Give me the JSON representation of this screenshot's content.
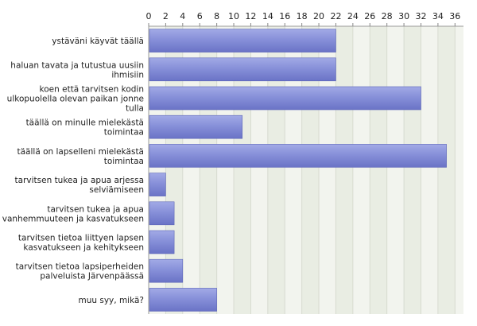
{
  "chart_data": {
    "type": "bar",
    "orientation": "horizontal",
    "categories": [
      "ystäväni käyvät täällä",
      "haluan tavata ja tutustua uusiin ihmisiin",
      "koen että tarvitsen kodin ulkopuolella olevan paikan jonne tulla",
      "täällä on minulle mielekästä toimintaa",
      "täällä on lapselleni mielekästä toimintaa",
      "tarvitsen tukea ja apua arjessa selviämiseen",
      "tarvitsen tukea ja apua vanhemmuuteen ja kasvatukseen",
      "tarvitsen tietoa liittyen lapsen kasvatukseen ja kehitykseen",
      "tarvitsen tietoa lapsiperheiden palveluista Järvenpäässä",
      "muu syy, mikä?"
    ],
    "category_lines": [
      [
        "ystäväni käyvät täällä"
      ],
      [
        "haluan tavata ja tutustua uusiin",
        "ihmisiin"
      ],
      [
        "koen että tarvitsen kodin",
        "ulkopuolella olevan paikan jonne",
        "tulla"
      ],
      [
        "täällä on minulle mielekästä",
        "toimintaa"
      ],
      [
        "täällä on lapselleni mielekästä",
        "toimintaa"
      ],
      [
        "tarvitsen tukea ja apua arjessa",
        "selviämiseen"
      ],
      [
        "tarvitsen tukea ja apua",
        "vanhemmuuteen ja kasvatukseen"
      ],
      [
        "tarvitsen tietoa liittyen lapsen",
        "kasvatukseen ja kehitykseen"
      ],
      [
        "tarvitsen tietoa lapsiperheiden",
        "palveluista Järvenpäässä"
      ],
      [
        "muu syy, mikä?"
      ]
    ],
    "values": [
      22,
      22,
      32,
      11,
      35,
      2,
      3,
      3,
      4,
      8
    ],
    "xlim": [
      0,
      37
    ],
    "xticks": [
      0,
      2,
      4,
      6,
      8,
      10,
      12,
      14,
      16,
      18,
      20,
      22,
      24,
      26,
      28,
      30,
      32,
      34,
      36
    ],
    "tick_position": "top",
    "grid": true,
    "bar_color": "#7c86d6",
    "plot_background": "#f2f4ee",
    "alternate_band_color": "#e9ede3"
  }
}
